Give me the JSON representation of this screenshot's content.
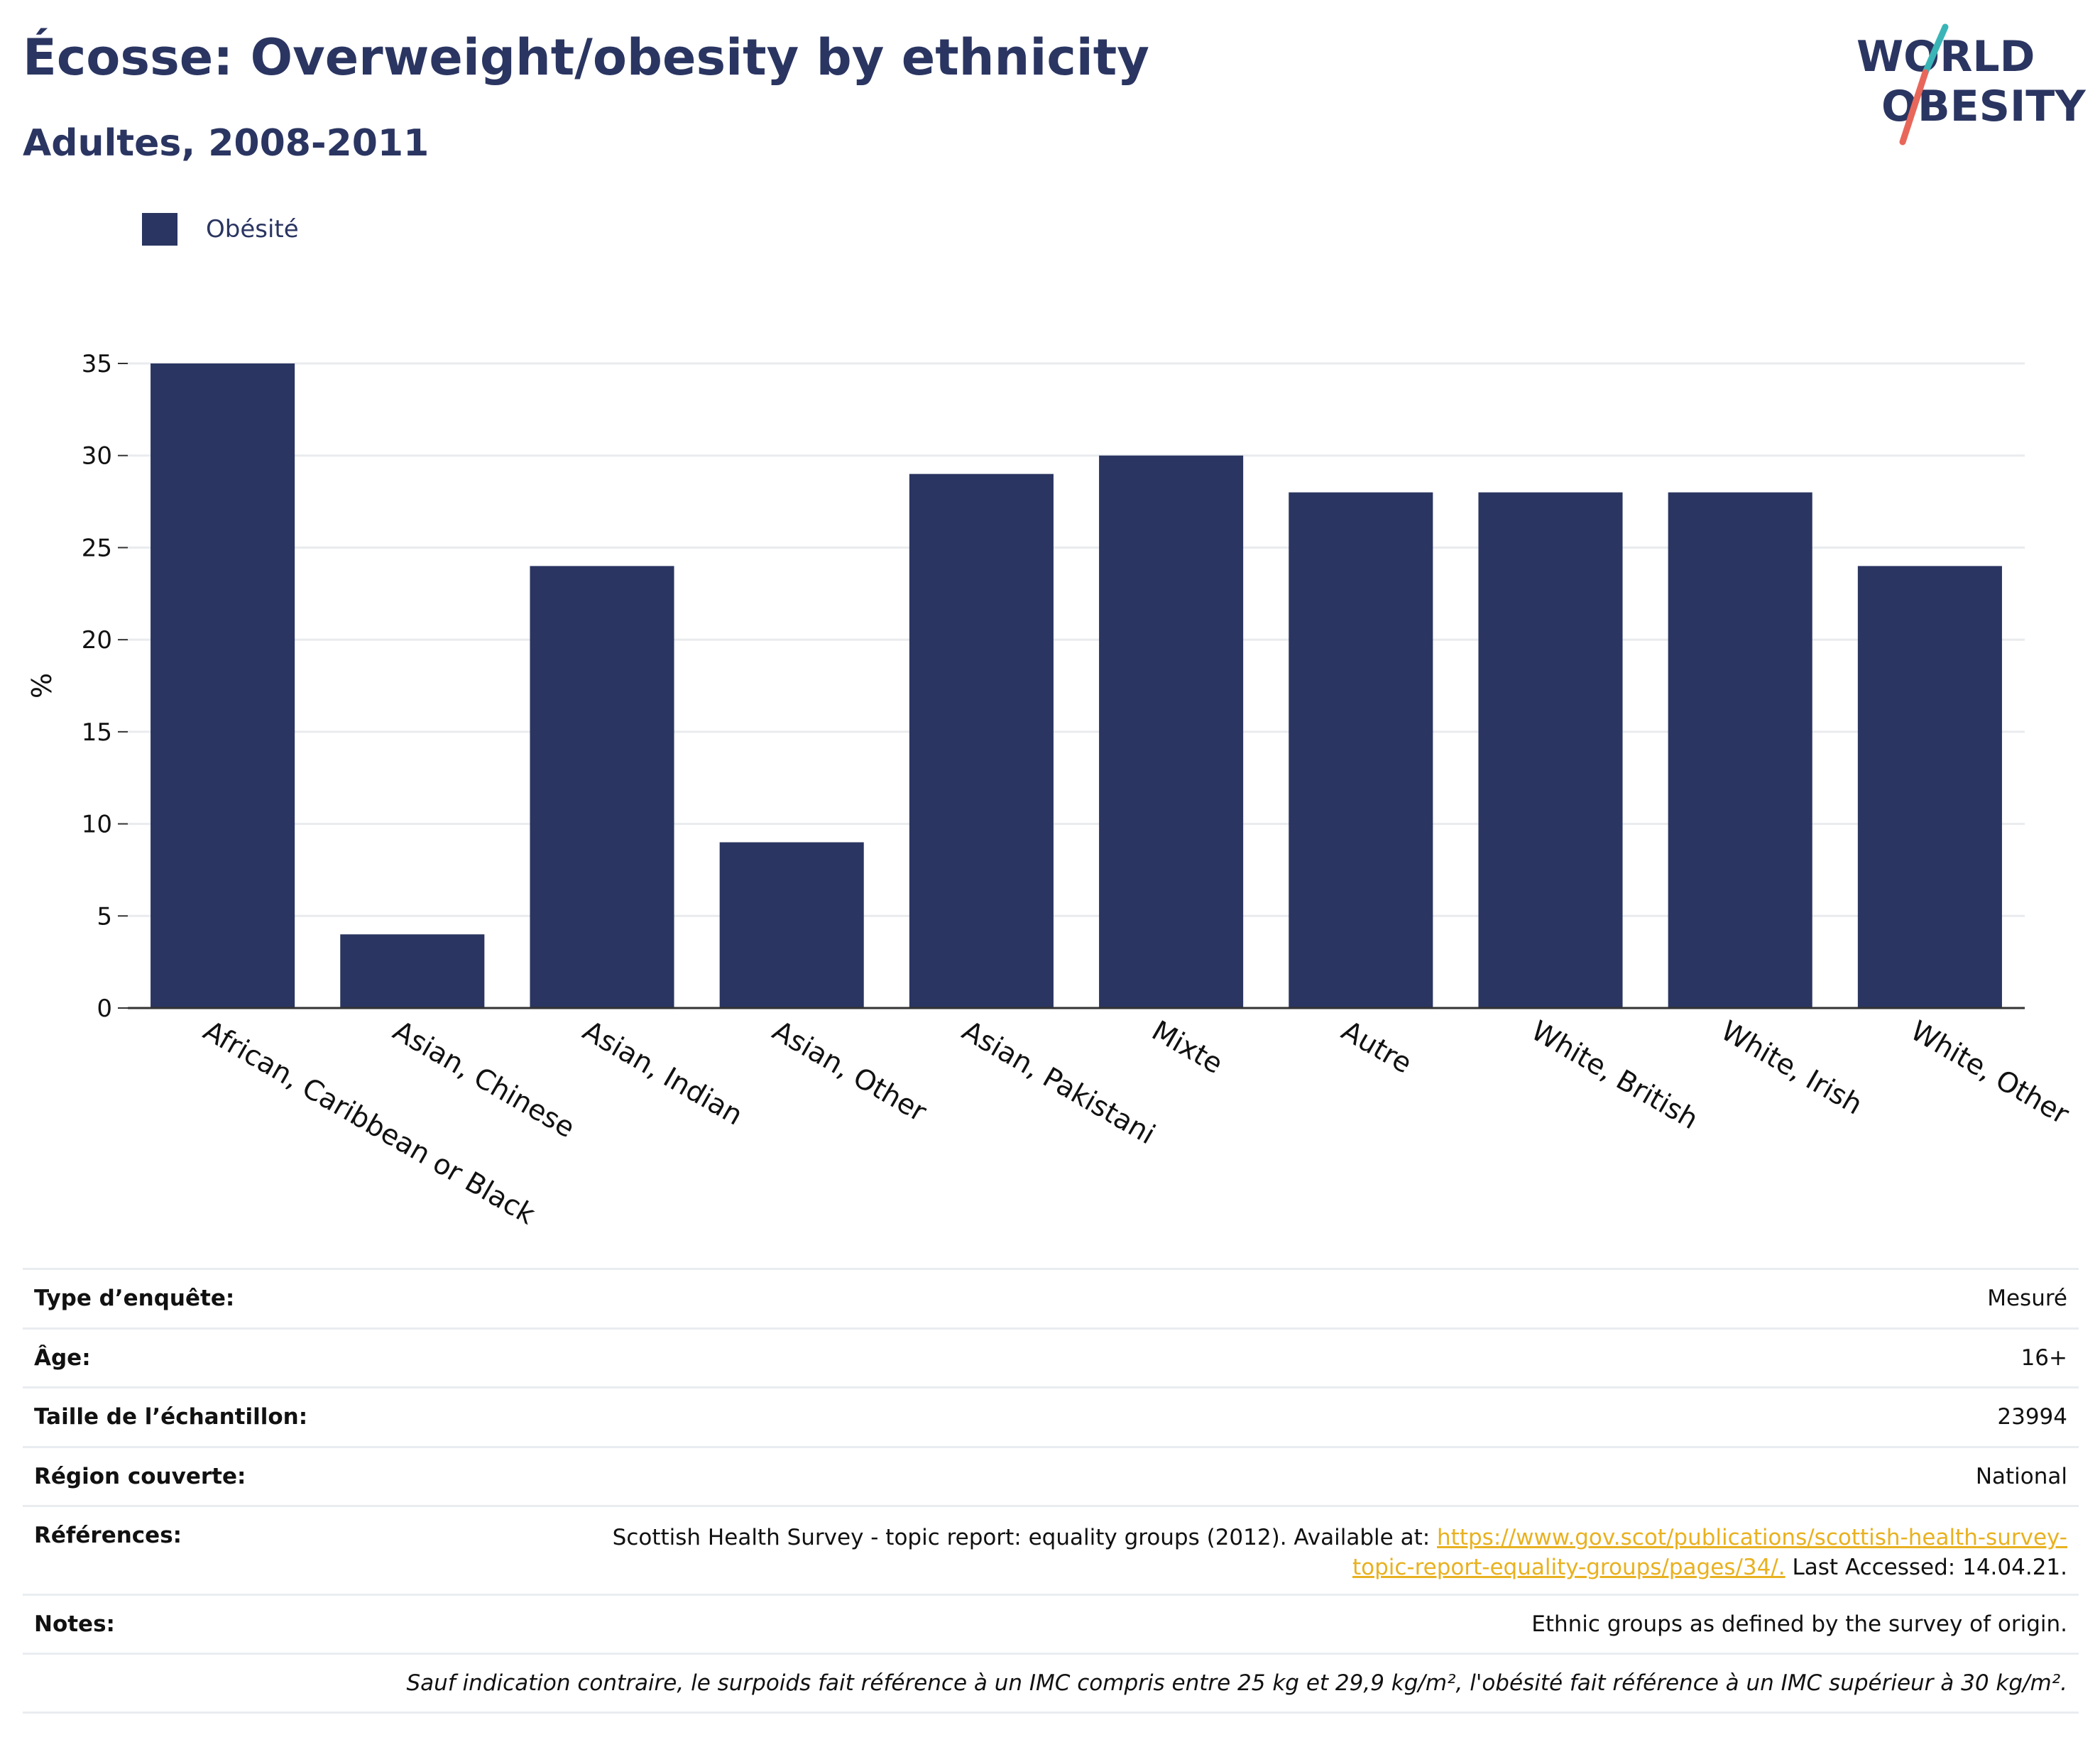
{
  "header": {
    "title": "Écosse: Overweight/obesity by ethnicity",
    "subtitle": "Adultes, 2008-2011",
    "logo_line1": "WORLD",
    "logo_line2": "OBESITY"
  },
  "colors": {
    "bar": "#2a3561",
    "text": "#2a3561",
    "link": "#e8b120",
    "logo_teal": "#3ab5b7",
    "logo_coral": "#e8675a"
  },
  "chart_data": {
    "type": "bar",
    "ylabel": "%",
    "xlabel": "",
    "ylim": [
      0,
      35
    ],
    "yticks": [
      0,
      5,
      10,
      15,
      20,
      25,
      30,
      35
    ],
    "grid": true,
    "legend_position": "top-left",
    "categories": [
      "African, Caribbean or Black",
      "Asian, Chinese",
      "Asian, Indian",
      "Asian, Other",
      "Asian, Pakistani",
      "Mixte",
      "Autre",
      "White, British",
      "White, Irish",
      "White, Other"
    ],
    "series": [
      {
        "name": "Obésité",
        "values": [
          35,
          4,
          24,
          9,
          29,
          30,
          28,
          28,
          28,
          24
        ]
      }
    ]
  },
  "info": {
    "survey_type": {
      "label": "Type d’enquête:",
      "value": "Mesuré"
    },
    "age": {
      "label": "Âge:",
      "value": "16+"
    },
    "sample_size": {
      "label": "Taille de l’échantillon:",
      "value": "23994"
    },
    "region": {
      "label": "Région couverte:",
      "value": "National"
    },
    "references": {
      "label": "Références:",
      "text_before": "Scottish Health Survey - topic report: equality groups (2012). Available at: ",
      "link": "https://www.gov.scot/publications/scottish-health-survey-topic-report-equality-groups/pages/34/.",
      "text_after": " Last Accessed: 14.04.21."
    },
    "notes": {
      "label": "Notes:",
      "value": "Ethnic groups as defined by the survey of origin."
    },
    "footnote": "Sauf indication contraire, le surpoids fait référence à un IMC compris entre 25 kg et 29,9 kg/m², l'obésité fait référence à un IMC supérieur à 30 kg/m²."
  }
}
